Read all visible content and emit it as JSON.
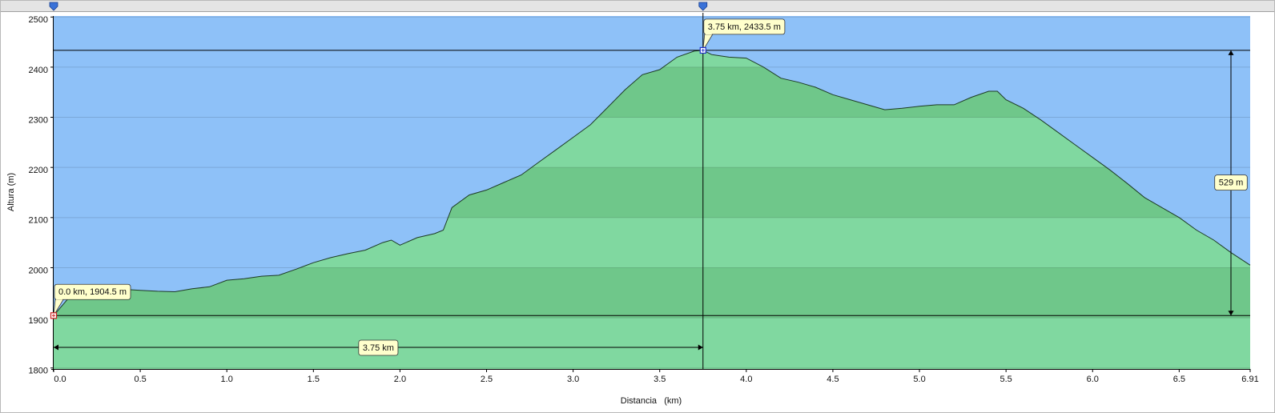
{
  "chart_data": {
    "type": "area",
    "x_label": "Distancia   (km)",
    "y_label": "Altura (m)",
    "x": [
      0.0,
      0.1,
      0.2,
      0.3,
      0.4,
      0.5,
      0.6,
      0.7,
      0.8,
      0.9,
      1.0,
      1.1,
      1.2,
      1.3,
      1.4,
      1.5,
      1.6,
      1.7,
      1.8,
      1.9,
      1.95,
      2.0,
      2.1,
      2.2,
      2.25,
      2.3,
      2.4,
      2.5,
      2.6,
      2.7,
      2.8,
      2.9,
      3.0,
      3.1,
      3.2,
      3.3,
      3.4,
      3.5,
      3.6,
      3.7,
      3.75,
      3.8,
      3.9,
      4.0,
      4.1,
      4.2,
      4.3,
      4.4,
      4.5,
      4.6,
      4.7,
      4.8,
      4.9,
      5.0,
      5.1,
      5.2,
      5.3,
      5.4,
      5.45,
      5.5,
      5.6,
      5.7,
      5.8,
      5.9,
      6.0,
      6.1,
      6.2,
      6.3,
      6.4,
      6.5,
      6.6,
      6.7,
      6.8,
      6.91
    ],
    "values": [
      1904.5,
      1945,
      1955,
      1955,
      1957,
      1955,
      1953,
      1952,
      1958,
      1962,
      1975,
      1978,
      1983,
      1985,
      1997,
      2010,
      2020,
      2028,
      2035,
      2050,
      2055,
      2045,
      2060,
      2068,
      2075,
      2120,
      2145,
      2155,
      2170,
      2185,
      2210,
      2235,
      2260,
      2285,
      2320,
      2355,
      2385,
      2395,
      2420,
      2432,
      2433.5,
      2425,
      2420,
      2418,
      2400,
      2378,
      2370,
      2360,
      2345,
      2335,
      2325,
      2315,
      2318,
      2322,
      2325,
      2325,
      2340,
      2352,
      2352,
      2335,
      2318,
      2295,
      2270,
      2245,
      2220,
      2195,
      2168,
      2140,
      2120,
      2100,
      2075,
      2055,
      2030,
      2005
    ],
    "xlim": [
      0,
      6.91
    ],
    "ylim": [
      1798,
      2502
    ],
    "xticks": [
      {
        "value": 0,
        "label": "0.0"
      },
      0.5,
      {
        "value": 1,
        "label": "1.0"
      },
      1.5,
      {
        "value": 2,
        "label": "2.0"
      },
      2.5,
      {
        "value": 3,
        "label": "3.0"
      },
      3.5,
      {
        "value": 4,
        "label": "4.0"
      },
      4.5,
      {
        "value": 5,
        "label": "5.0"
      },
      5.5,
      {
        "value": 6,
        "label": "6.0"
      },
      6.5,
      6.91
    ],
    "yticks": [
      1800,
      1900,
      2000,
      2100,
      2200,
      2300,
      2400,
      2500
    ],
    "grid": true,
    "sky_color": "#8ec1f8",
    "band_colors": [
      "#80d8a0",
      "#6fc78a"
    ],
    "markers": [
      {
        "x": 0,
        "y": 1904.5,
        "label": "0.0 km, 1904.5 m"
      },
      {
        "x": 3.75,
        "y": 2433.5,
        "label": "3.75 km, 2433.5 m"
      }
    ],
    "distance": {
      "value": 3.75,
      "label": "3.75 km"
    },
    "elevation_gain": {
      "value": 529,
      "label": "529 m"
    }
  }
}
